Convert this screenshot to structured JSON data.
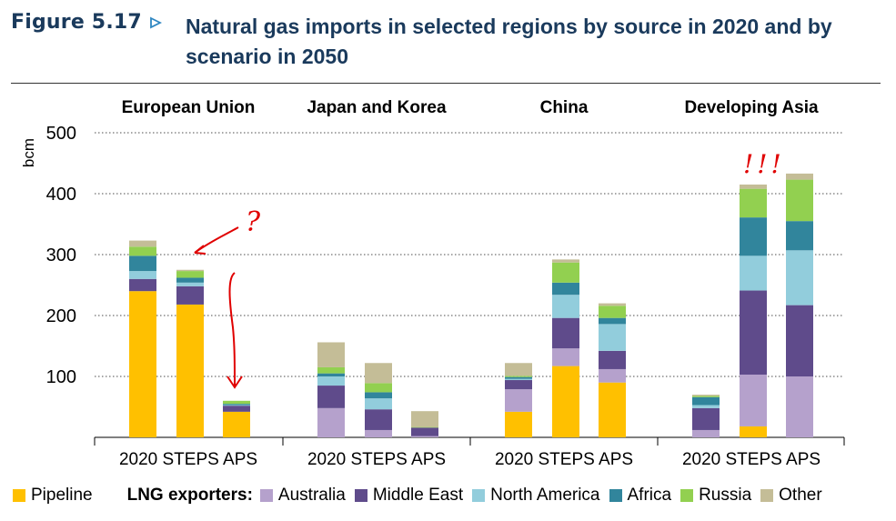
{
  "figure": {
    "label": "Figure 5.17",
    "title": "Natural gas imports in selected regions by source in 2020 and by scenario in 2050"
  },
  "chart_data": {
    "type": "bar",
    "stacked": true,
    "ylabel": "bcm",
    "ylim": [
      0,
      500
    ],
    "yticks": [
      100,
      200,
      300,
      400,
      500
    ],
    "grid": true,
    "legend_position": "bottom",
    "legend_group_label": "LNG exporters:",
    "panels": [
      {
        "title": "European Union",
        "categories": [
          "2020",
          "STEPS",
          "APS"
        ],
        "series": [
          {
            "name": "Pipeline",
            "values": [
              240,
              218,
              42
            ]
          },
          {
            "name": "Australia",
            "values": [
              0,
              0,
              0
            ]
          },
          {
            "name": "Middle East",
            "values": [
              20,
              30,
              10
            ]
          },
          {
            "name": "North America",
            "values": [
              13,
              6,
              1
            ]
          },
          {
            "name": "Africa",
            "values": [
              25,
              8,
              2
            ]
          },
          {
            "name": "Russia",
            "values": [
              15,
              11,
              5
            ]
          },
          {
            "name": "Other",
            "values": [
              10,
              2,
              0
            ]
          }
        ]
      },
      {
        "title": "Japan and Korea",
        "categories": [
          "2020",
          "STEPS",
          "APS"
        ],
        "series": [
          {
            "name": "Pipeline",
            "values": [
              0,
              0,
              0
            ]
          },
          {
            "name": "Australia",
            "values": [
              48,
              12,
              2
            ]
          },
          {
            "name": "Middle East",
            "values": [
              37,
              34,
              14
            ]
          },
          {
            "name": "North America",
            "values": [
              15,
              18,
              0
            ]
          },
          {
            "name": "Africa",
            "values": [
              5,
              10,
              0
            ]
          },
          {
            "name": "Russia",
            "values": [
              10,
              15,
              1
            ]
          },
          {
            "name": "Other",
            "values": [
              41,
              33,
              26
            ]
          }
        ]
      },
      {
        "title": "China",
        "categories": [
          "2020",
          "STEPS",
          "APS"
        ],
        "series": [
          {
            "name": "Pipeline",
            "values": [
              42,
              117,
              90
            ]
          },
          {
            "name": "Australia",
            "values": [
              37,
              29,
              22
            ]
          },
          {
            "name": "Middle East",
            "values": [
              15,
              50,
              30
            ]
          },
          {
            "name": "North America",
            "values": [
              2,
              38,
              44
            ]
          },
          {
            "name": "Africa",
            "values": [
              3,
              20,
              10
            ]
          },
          {
            "name": "Russia",
            "values": [
              2,
              33,
              20
            ]
          },
          {
            "name": "Other",
            "values": [
              21,
              5,
              4
            ]
          }
        ]
      },
      {
        "title": "Developing Asia",
        "categories": [
          "2020",
          "STEPS",
          "APS"
        ],
        "series": [
          {
            "name": "Pipeline",
            "values": [
              0,
              18,
              0
            ]
          },
          {
            "name": "Australia",
            "values": [
              12,
              85,
              100
            ]
          },
          {
            "name": "Middle East",
            "values": [
              36,
              138,
              117
            ]
          },
          {
            "name": "North America",
            "values": [
              5,
              57,
              90
            ]
          },
          {
            "name": "Africa",
            "values": [
              13,
              63,
              48
            ]
          },
          {
            "name": "Russia",
            "values": [
              2,
              47,
              68
            ]
          },
          {
            "name": "Other",
            "values": [
              2,
              7,
              10
            ]
          }
        ]
      }
    ]
  },
  "colors": {
    "Pipeline": "#ffc000",
    "Australia": "#b5a1cc",
    "Middle East": "#5f4b8b",
    "North America": "#92cddc",
    "Africa": "#31859c",
    "Russia": "#92d050",
    "Other": "#c4bd97",
    "title": "#1a3a5c",
    "annotation": "#e00000",
    "grid": "#888888"
  },
  "annotations": {
    "question_mark": "?",
    "exclamations": "!!!"
  }
}
